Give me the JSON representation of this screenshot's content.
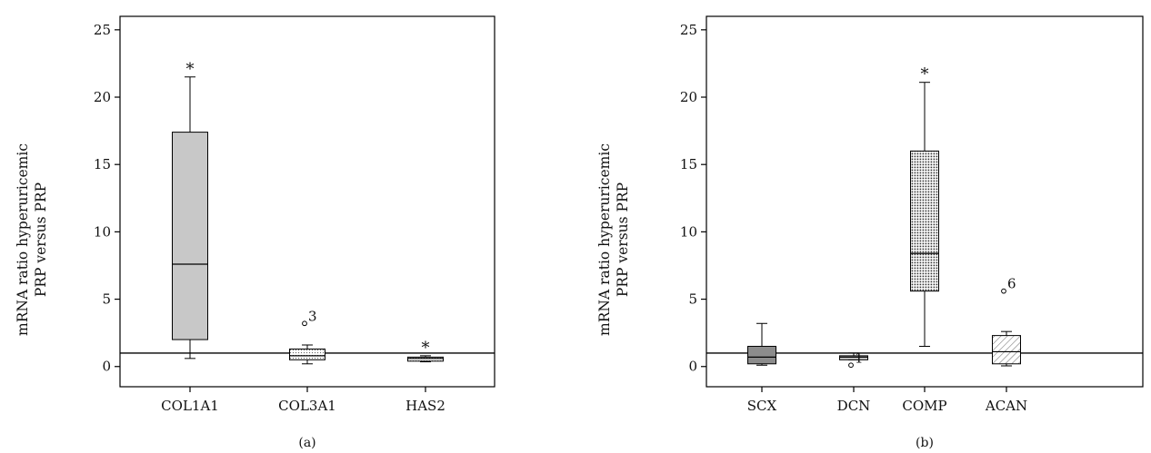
{
  "chart_data": [
    {
      "type": "box",
      "panel_label": "(a)",
      "ylabel": [
        "mRNA ratio hyperuricemic",
        "PRP versus PRP"
      ],
      "ylim": [
        -1.5,
        26
      ],
      "yticks": [
        0,
        5,
        10,
        15,
        20,
        25
      ],
      "reference_line": 1,
      "categories": [
        "COL1A1",
        "COL3A1",
        "HAS2"
      ],
      "boxes": [
        {
          "category": "COL1A1",
          "fill": "gray",
          "min": 0.6,
          "q1": 2.0,
          "median": 7.6,
          "q3": 17.4,
          "max": 21.5,
          "marker": "*",
          "outliers": []
        },
        {
          "category": "COL3A1",
          "fill": "fine-dots",
          "min": 0.2,
          "q1": 0.5,
          "median": 0.8,
          "q3": 1.3,
          "max": 1.6,
          "marker": "",
          "outliers": [
            {
              "value": 3.2,
              "label": "3"
            }
          ]
        },
        {
          "category": "HAS2",
          "fill": "fine-dots",
          "min": 0.35,
          "q1": 0.4,
          "median": 0.6,
          "q3": 0.7,
          "max": 0.8,
          "marker": "*",
          "outliers": []
        }
      ]
    },
    {
      "type": "box",
      "panel_label": "(b)",
      "ylabel": [
        "mRNA ratio hyperuricemic",
        "PRP versus PRP"
      ],
      "ylim": [
        -1.5,
        26
      ],
      "yticks": [
        0,
        5,
        10,
        15,
        20,
        25
      ],
      "reference_line": 1,
      "categories": [
        "SCX",
        "DCN",
        "COMP",
        "ACAN"
      ],
      "boxes": [
        {
          "category": "SCX",
          "fill": "dark-gray",
          "min": 0.1,
          "q1": 0.2,
          "median": 0.7,
          "q3": 1.5,
          "max": 3.2,
          "marker": "",
          "outliers": []
        },
        {
          "category": "DCN",
          "fill": "gray",
          "min": 0.5,
          "q1": 0.5,
          "median": 0.7,
          "q3": 0.8,
          "max": 1.0,
          "marker": "",
          "outliers": [
            {
              "value": 0.1,
              "label": "1"
            }
          ]
        },
        {
          "category": "COMP",
          "fill": "dots",
          "min": 1.5,
          "q1": 5.6,
          "median": 8.4,
          "q3": 16.0,
          "max": 21.1,
          "marker": "*",
          "outliers": []
        },
        {
          "category": "ACAN",
          "fill": "hatch",
          "min": 0.05,
          "q1": 0.2,
          "median": 1.1,
          "q3": 2.3,
          "max": 2.6,
          "marker": "",
          "outliers": [
            {
              "value": 5.6,
              "label": "6"
            }
          ]
        }
      ]
    }
  ]
}
